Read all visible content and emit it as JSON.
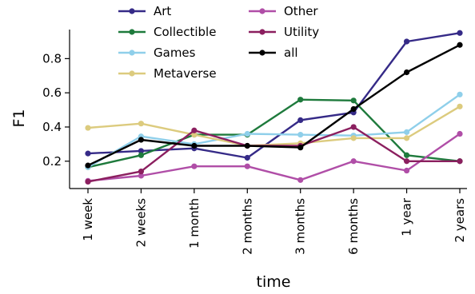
{
  "chart_data": {
    "type": "line",
    "title": "",
    "xlabel": "time",
    "ylabel": "F1",
    "categories": [
      "1 week",
      "2 weeks",
      "1 month",
      "2 months",
      "3 months",
      "6 months",
      "1 year",
      "2 years"
    ],
    "yticks": [
      "0.2",
      "0.4",
      "0.6",
      "0.8"
    ],
    "ytick_values": [
      0.2,
      0.4,
      0.6,
      0.8
    ],
    "ylim": [
      0.04,
      0.97
    ],
    "grid": false,
    "legend_position": "top-center",
    "series": [
      {
        "name": "Art",
        "color": "#352a87",
        "values": [
          0.245,
          0.26,
          0.275,
          0.22,
          0.44,
          0.485,
          0.9,
          0.95
        ]
      },
      {
        "name": "Collectible",
        "color": "#1e7a3c",
        "values": [
          0.165,
          0.235,
          0.355,
          0.355,
          0.56,
          0.555,
          0.235,
          0.2
        ]
      },
      {
        "name": "Games",
        "color": "#8fcfea",
        "values": [
          0.165,
          0.345,
          0.3,
          0.36,
          0.355,
          0.35,
          0.37,
          0.59
        ]
      },
      {
        "name": "Metaverse",
        "color": "#dccb7e",
        "values": [
          0.395,
          0.42,
          0.355,
          0.29,
          0.305,
          0.335,
          0.335,
          0.52
        ]
      },
      {
        "name": "Other",
        "color": "#b04ea7",
        "values": [
          0.085,
          0.115,
          0.17,
          0.17,
          0.09,
          0.2,
          0.145,
          0.36
        ]
      },
      {
        "name": "Utility",
        "color": "#8b1f5f",
        "values": [
          0.08,
          0.14,
          0.38,
          0.29,
          0.29,
          0.4,
          0.2,
          0.2
        ]
      },
      {
        "name": "all",
        "color": "#000000",
        "values": [
          0.175,
          0.325,
          0.29,
          0.29,
          0.28,
          0.505,
          0.72,
          0.88
        ]
      }
    ]
  }
}
